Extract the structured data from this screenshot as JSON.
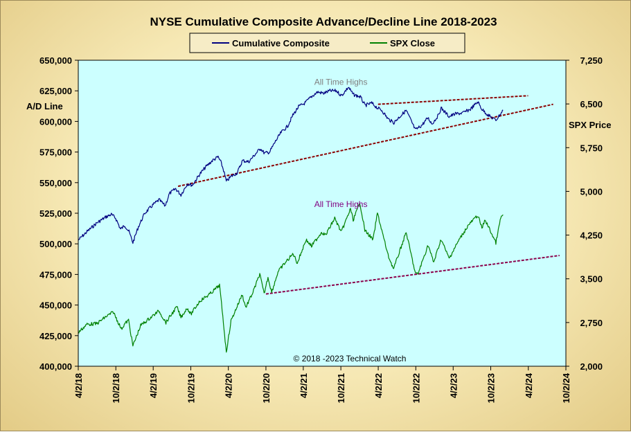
{
  "chart_data": {
    "type": "line",
    "title": "NYSE Cumulative  Composite Advance/Decline  Line 2018-2023",
    "left_axis": {
      "label": "A/D Line",
      "range": [
        400000,
        650000
      ],
      "ticks": [
        "400,000",
        "425,000",
        "450,000",
        "475,000",
        "500,000",
        "525,000",
        "550,000",
        "575,000",
        "600,000",
        "625,000",
        "650,000"
      ]
    },
    "right_axis": {
      "label": "SPX Price",
      "range": [
        2000,
        7250
      ],
      "ticks": [
        "2,000",
        "2,750",
        "3,500",
        "4,250",
        "5,000",
        "5,750",
        "6,500",
        "7,250"
      ]
    },
    "x_axis": {
      "range": [
        "2018-04-02",
        "2024-10-02"
      ],
      "ticks": [
        "4/2/18",
        "10/2/18",
        "4/2/19",
        "10/2/19",
        "4/2/20",
        "10/2/20",
        "4/2/21",
        "10/2/21",
        "4/2/22",
        "10/2/22",
        "4/2/23",
        "10/2/23",
        "4/2/24",
        "10/2/24"
      ]
    },
    "legend": {
      "placement": "top-center",
      "entries": [
        "Cumulative Composite",
        "SPX Close"
      ]
    },
    "grid": false,
    "plot_background": "#ccffff",
    "series": [
      {
        "name": "Cumulative Composite",
        "axis": "left",
        "color": "#000080",
        "points": [
          [
            "2018-04-02",
            503000
          ],
          [
            "2018-05-15",
            510000
          ],
          [
            "2018-07-01",
            517000
          ],
          [
            "2018-08-15",
            522000
          ],
          [
            "2018-09-10",
            524000
          ],
          [
            "2018-10-01",
            521000
          ],
          [
            "2018-10-25",
            512000
          ],
          [
            "2018-11-15",
            515000
          ],
          [
            "2018-12-05",
            510000
          ],
          [
            "2018-12-24",
            501000
          ],
          [
            "2019-01-20",
            514000
          ],
          [
            "2019-02-20",
            525000
          ],
          [
            "2019-04-02",
            532000
          ],
          [
            "2019-05-01",
            536000
          ],
          [
            "2019-05-30",
            531000
          ],
          [
            "2019-06-20",
            541000
          ],
          [
            "2019-07-20",
            545000
          ],
          [
            "2019-08-15",
            540000
          ],
          [
            "2019-09-15",
            549000
          ],
          [
            "2019-10-10",
            548000
          ],
          [
            "2019-11-15",
            557000
          ],
          [
            "2019-12-15",
            563000
          ],
          [
            "2020-01-15",
            568000
          ],
          [
            "2020-02-12",
            571000
          ],
          [
            "2020-02-25",
            567000
          ],
          [
            "2020-03-10",
            560000
          ],
          [
            "2020-03-23",
            551000
          ],
          [
            "2020-04-15",
            555000
          ],
          [
            "2020-05-15",
            558000
          ],
          [
            "2020-06-10",
            568000
          ],
          [
            "2020-07-10",
            567000
          ],
          [
            "2020-08-10",
            573000
          ],
          [
            "2020-09-05",
            578000
          ],
          [
            "2020-09-25",
            574000
          ],
          [
            "2020-10-20",
            575000
          ],
          [
            "2020-11-15",
            583000
          ],
          [
            "2020-12-15",
            591000
          ],
          [
            "2021-01-15",
            596000
          ],
          [
            "2021-02-10",
            605000
          ],
          [
            "2021-03-10",
            612000
          ],
          [
            "2021-04-10",
            615000
          ],
          [
            "2021-05-10",
            620000
          ],
          [
            "2021-06-10",
            624000
          ],
          [
            "2021-07-10",
            623000
          ],
          [
            "2021-08-10",
            625000
          ],
          [
            "2021-09-10",
            625000
          ],
          [
            "2021-10-05",
            621000
          ],
          [
            "2021-11-08",
            628000
          ],
          [
            "2021-12-01",
            622000
          ],
          [
            "2022-01-05",
            620000
          ],
          [
            "2022-01-28",
            613000
          ],
          [
            "2022-03-01",
            615000
          ],
          [
            "2022-03-29",
            611000
          ],
          [
            "2022-04-20",
            609000
          ],
          [
            "2022-05-20",
            602000
          ],
          [
            "2022-06-17",
            599000
          ],
          [
            "2022-07-10",
            603000
          ],
          [
            "2022-08-16",
            609000
          ],
          [
            "2022-09-05",
            602000
          ],
          [
            "2022-09-30",
            593000
          ],
          [
            "2022-11-01",
            597000
          ],
          [
            "2022-11-30",
            603000
          ],
          [
            "2022-12-20",
            598000
          ],
          [
            "2023-01-20",
            605000
          ],
          [
            "2023-02-02",
            611000
          ],
          [
            "2023-03-13",
            604000
          ],
          [
            "2023-04-10",
            606000
          ],
          [
            "2023-05-20",
            607000
          ],
          [
            "2023-06-25",
            610000
          ],
          [
            "2023-07-31",
            616000
          ],
          [
            "2023-08-20",
            610000
          ],
          [
            "2023-09-20",
            605000
          ],
          [
            "2023-10-27",
            601000
          ],
          [
            "2023-12-01",
            609000
          ]
        ]
      },
      {
        "name": "SPX Close",
        "axis": "right",
        "color": "#008000",
        "points": [
          [
            "2018-04-02",
            2580
          ],
          [
            "2018-05-15",
            2720
          ],
          [
            "2018-07-01",
            2730
          ],
          [
            "2018-08-15",
            2850
          ],
          [
            "2018-09-20",
            2930
          ],
          [
            "2018-10-10",
            2780
          ],
          [
            "2018-10-29",
            2640
          ],
          [
            "2018-11-15",
            2730
          ],
          [
            "2018-12-03",
            2790
          ],
          [
            "2018-12-24",
            2350
          ],
          [
            "2019-01-31",
            2700
          ],
          [
            "2019-03-15",
            2820
          ],
          [
            "2019-04-30",
            2950
          ],
          [
            "2019-06-03",
            2750
          ],
          [
            "2019-07-26",
            3020
          ],
          [
            "2019-08-15",
            2840
          ],
          [
            "2019-09-15",
            3000
          ],
          [
            "2019-10-02",
            2890
          ],
          [
            "2019-11-15",
            3120
          ],
          [
            "2019-12-31",
            3230
          ],
          [
            "2020-02-19",
            3390
          ],
          [
            "2020-03-09",
            2750
          ],
          [
            "2020-03-23",
            2240
          ],
          [
            "2020-04-15",
            2780
          ],
          [
            "2020-06-08",
            3230
          ],
          [
            "2020-06-26",
            3010
          ],
          [
            "2020-07-31",
            3270
          ],
          [
            "2020-09-02",
            3580
          ],
          [
            "2020-09-23",
            3240
          ],
          [
            "2020-10-12",
            3530
          ],
          [
            "2020-10-30",
            3270
          ],
          [
            "2020-11-30",
            3620
          ],
          [
            "2020-12-31",
            3760
          ],
          [
            "2021-02-12",
            3930
          ],
          [
            "2021-03-04",
            3770
          ],
          [
            "2021-04-15",
            4170
          ],
          [
            "2021-05-12",
            4060
          ],
          [
            "2021-06-30",
            4300
          ],
          [
            "2021-07-20",
            4250
          ],
          [
            "2021-09-02",
            4540
          ],
          [
            "2021-10-04",
            4300
          ],
          [
            "2021-11-18",
            4700
          ],
          [
            "2021-12-01",
            4510
          ],
          [
            "2022-01-03",
            4800
          ],
          [
            "2022-01-27",
            4330
          ],
          [
            "2022-03-08",
            4170
          ],
          [
            "2022-03-29",
            4630
          ],
          [
            "2022-05-20",
            3900
          ],
          [
            "2022-06-16",
            3670
          ],
          [
            "2022-08-16",
            4300
          ],
          [
            "2022-09-30",
            3590
          ],
          [
            "2022-10-12",
            3580
          ],
          [
            "2022-12-01",
            4080
          ],
          [
            "2022-12-28",
            3780
          ],
          [
            "2023-02-02",
            4180
          ],
          [
            "2023-03-13",
            3850
          ],
          [
            "2023-05-01",
            4170
          ],
          [
            "2023-06-15",
            4420
          ],
          [
            "2023-07-31",
            4590
          ],
          [
            "2023-08-20",
            4370
          ],
          [
            "2023-09-05",
            4510
          ],
          [
            "2023-10-27",
            4120
          ],
          [
            "2023-11-20",
            4550
          ],
          [
            "2023-12-01",
            4600
          ]
        ]
      }
    ],
    "trendlines": [
      {
        "axis": "left",
        "color": "#8b0000",
        "points": [
          [
            "2019-08-01",
            547000
          ],
          [
            "2024-08-01",
            614000
          ]
        ]
      },
      {
        "axis": "left",
        "color": "#8b0000",
        "points": [
          [
            "2022-04-01",
            614000
          ],
          [
            "2024-04-01",
            621000
          ]
        ]
      },
      {
        "axis": "right",
        "color": "#8b004b",
        "points": [
          [
            "2020-10-02",
            3240
          ],
          [
            "2024-09-01",
            3900
          ]
        ]
      }
    ],
    "annotations": [
      {
        "text": "All Time Highs",
        "color": "#808080",
        "x": "2021-10-02",
        "y": 630000
      },
      {
        "text": "All Time Highs",
        "color": "#800080",
        "x": "2021-10-02",
        "y": 530000
      }
    ],
    "credit": "© 2018 -2023  Technical  Watch"
  }
}
